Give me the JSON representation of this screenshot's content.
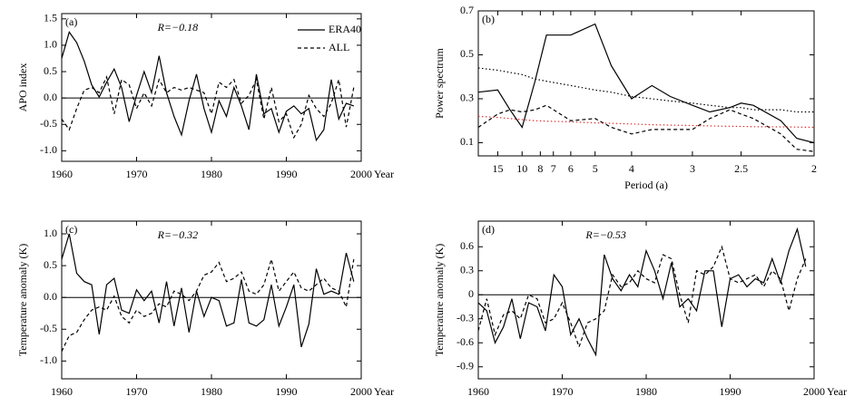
{
  "chart_data": [
    {
      "type": "line",
      "panel_label": "(a)",
      "annotation": "R=−0.18",
      "ylabel": "APO index",
      "xlabel": "Year",
      "x": [
        1960,
        1961,
        1962,
        1963,
        1964,
        1965,
        1966,
        1967,
        1968,
        1969,
        1970,
        1971,
        1972,
        1973,
        1974,
        1975,
        1976,
        1977,
        1978,
        1979,
        1980,
        1981,
        1982,
        1983,
        1984,
        1985,
        1986,
        1987,
        1988,
        1989,
        1990,
        1991,
        1992,
        1993,
        1994,
        1995,
        1996,
        1997,
        1998,
        1999
      ],
      "xlim": [
        1960,
        2000
      ],
      "xticks": [
        1960,
        1970,
        1980,
        1990,
        2000
      ],
      "ylim": [
        -1.2,
        1.6
      ],
      "yticks": [
        {
          "value": -1,
          "label": "-1.0"
        },
        -0.5,
        {
          "value": 0,
          "label": "0.0"
        },
        0.5,
        {
          "value": 1,
          "label": "1.0"
        },
        1.5
      ],
      "zero_line": true,
      "legend": "upper right",
      "series": [
        {
          "name": "ERA40",
          "color": "#000000",
          "dash": "solid",
          "values": [
            0.75,
            1.25,
            1.05,
            0.7,
            0.25,
            0.02,
            0.3,
            0.55,
            0.2,
            -0.45,
            0.05,
            0.5,
            0.1,
            0.8,
            0.1,
            -0.35,
            -0.7,
            -0.05,
            0.45,
            -0.2,
            -0.65,
            -0.05,
            -0.35,
            0.2,
            -0.15,
            -0.6,
            0.45,
            -0.3,
            -0.2,
            -0.65,
            -0.25,
            -0.15,
            -0.3,
            -0.2,
            -0.8,
            -0.6,
            0.35,
            -0.4,
            -0.1,
            -0.15
          ]
        },
        {
          "name": "ALL",
          "color": "#000000",
          "dash": "dashed",
          "values": [
            -0.4,
            -0.6,
            -0.2,
            0.15,
            0.2,
            0.1,
            0.4,
            -0.3,
            0.35,
            0.25,
            -0.2,
            0.1,
            -0.15,
            0.35,
            0.1,
            0.2,
            0.15,
            0.2,
            0.15,
            0.1,
            -0.3,
            0.3,
            0.2,
            0.35,
            -0.1,
            0.05,
            0.35,
            -0.4,
            0.2,
            -0.45,
            -0.3,
            -0.75,
            -0.5,
            0.05,
            -0.2,
            -0.35,
            -0.1,
            0.35,
            -0.55,
            0.2
          ]
        }
      ]
    },
    {
      "type": "line",
      "panel_label": "(b)",
      "ylabel": "Power spectrum",
      "xlabel": "Period (a)",
      "xscale": "reciprocal",
      "x": [
        25,
        15,
        12,
        10,
        8.5,
        7.5,
        6,
        5,
        4.5,
        4,
        3.6,
        3.3,
        3,
        2.8,
        2.6,
        2.5,
        2.4,
        2.2,
        2.1,
        2
      ],
      "xlim": [
        25,
        2
      ],
      "xticks": [
        15,
        10,
        8,
        7,
        6,
        5,
        4,
        3,
        2.5,
        2
      ],
      "ylim": [
        0.04,
        0.7
      ],
      "yticks": [
        0.1,
        0.3,
        0.5,
        0.7
      ],
      "series": [
        {
          "color": "#000000",
          "dash": "solid",
          "values": [
            0.33,
            0.34,
            0.25,
            0.17,
            0.38,
            0.59,
            0.59,
            0.64,
            0.45,
            0.3,
            0.36,
            0.31,
            0.27,
            0.24,
            0.26,
            0.28,
            0.27,
            0.2,
            0.12,
            0.1
          ]
        },
        {
          "color": "#000000",
          "dash": "dashed",
          "values": [
            0.17,
            0.23,
            0.25,
            0.24,
            0.25,
            0.27,
            0.2,
            0.21,
            0.17,
            0.14,
            0.16,
            0.16,
            0.16,
            0.21,
            0.25,
            0.23,
            0.21,
            0.14,
            0.07,
            0.06
          ]
        },
        {
          "color": "#000000",
          "dash": "dotted",
          "values": [
            0.44,
            0.43,
            0.42,
            0.41,
            0.39,
            0.38,
            0.36,
            0.34,
            0.33,
            0.31,
            0.3,
            0.29,
            0.28,
            0.27,
            0.26,
            0.26,
            0.25,
            0.25,
            0.24,
            0.24
          ]
        },
        {
          "color": "#e03030",
          "dash": "dotted",
          "values": [
            0.22,
            0.215,
            0.21,
            0.205,
            0.2,
            0.198,
            0.195,
            0.19,
            0.188,
            0.185,
            0.182,
            0.18,
            0.178,
            0.176,
            0.175,
            0.174,
            0.173,
            0.172,
            0.171,
            0.17
          ]
        }
      ]
    },
    {
      "type": "line",
      "panel_label": "(c)",
      "annotation": "R=−0.32",
      "ylabel": "Temperature anomaly (K)",
      "xlabel": "Year",
      "x": [
        1960,
        1961,
        1962,
        1963,
        1964,
        1965,
        1966,
        1967,
        1968,
        1969,
        1970,
        1971,
        1972,
        1973,
        1974,
        1975,
        1976,
        1977,
        1978,
        1979,
        1980,
        1981,
        1982,
        1983,
        1984,
        1985,
        1986,
        1987,
        1988,
        1989,
        1990,
        1991,
        1992,
        1993,
        1994,
        1995,
        1996,
        1997,
        1998,
        1999
      ],
      "xlim": [
        1960,
        2000
      ],
      "xticks": [
        1960,
        1970,
        1980,
        1990,
        2000
      ],
      "ylim": [
        -1.28,
        1.2
      ],
      "yticks": [
        {
          "value": -1,
          "label": "-1.0"
        },
        -0.5,
        {
          "value": 0,
          "label": "0.0"
        },
        0.5,
        {
          "value": 1,
          "label": "1.0"
        }
      ],
      "zero_line": true,
      "series": [
        {
          "color": "#000000",
          "dash": "solid",
          "values": [
            0.6,
            1.0,
            0.38,
            0.25,
            0.2,
            -0.58,
            0.2,
            0.3,
            -0.2,
            -0.25,
            0.12,
            -0.05,
            0.1,
            -0.4,
            0.25,
            -0.45,
            0.15,
            -0.55,
            0.1,
            -0.3,
            0.0,
            -0.05,
            -0.45,
            -0.4,
            0.28,
            -0.4,
            -0.45,
            -0.35,
            0.2,
            -0.45,
            -0.15,
            0.2,
            -0.78,
            -0.42,
            0.45,
            0.05,
            0.1,
            0.05,
            0.7,
            0.25
          ]
        },
        {
          "color": "#000000",
          "dash": "dashed",
          "values": [
            -0.85,
            -0.6,
            -0.55,
            -0.35,
            -0.2,
            -0.15,
            -0.2,
            0.02,
            -0.3,
            -0.4,
            -0.2,
            -0.3,
            -0.25,
            -0.1,
            -0.15,
            0.1,
            0.05,
            -0.05,
            0.1,
            0.35,
            0.4,
            0.55,
            0.25,
            0.3,
            0.4,
            0.1,
            0.05,
            0.2,
            0.6,
            0.1,
            0.25,
            0.4,
            0.15,
            0.1,
            0.2,
            0.3,
            0.15,
            0.1,
            -0.15,
            0.6
          ]
        }
      ]
    },
    {
      "type": "line",
      "panel_label": "(d)",
      "annotation": "R=−0.53",
      "ylabel": "Temperature anomaly (K)",
      "xlabel": "Year",
      "x": [
        1960,
        1961,
        1962,
        1963,
        1964,
        1965,
        1966,
        1967,
        1968,
        1969,
        1970,
        1971,
        1972,
        1973,
        1974,
        1975,
        1976,
        1977,
        1978,
        1979,
        1980,
        1981,
        1982,
        1983,
        1984,
        1985,
        1986,
        1987,
        1988,
        1989,
        1990,
        1991,
        1992,
        1993,
        1994,
        1995,
        1996,
        1997,
        1998,
        1999
      ],
      "xlim": [
        1960,
        2000
      ],
      "xticks": [
        1960,
        1970,
        1980,
        1990,
        2000
      ],
      "ylim": [
        -1.05,
        0.92
      ],
      "yticks": [
        -0.9,
        -0.6,
        -0.3,
        0,
        0.3,
        0.6
      ],
      "zero_line": true,
      "series": [
        {
          "color": "#000000",
          "dash": "solid",
          "values": [
            -0.1,
            -0.2,
            -0.6,
            -0.4,
            -0.05,
            -0.55,
            -0.1,
            -0.15,
            -0.45,
            0.25,
            0.1,
            -0.5,
            -0.3,
            -0.55,
            -0.75,
            0.5,
            0.2,
            0.05,
            0.25,
            0.1,
            0.55,
            0.3,
            -0.05,
            0.4,
            -0.15,
            -0.05,
            -0.2,
            0.3,
            0.3,
            -0.4,
            0.2,
            0.25,
            0.1,
            0.2,
            0.15,
            0.45,
            0.15,
            0.55,
            0.82,
            0.35
          ]
        },
        {
          "color": "#000000",
          "dash": "dashed",
          "values": [
            -0.45,
            -0.05,
            -0.5,
            -0.25,
            -0.2,
            -0.3,
            0.0,
            -0.05,
            -0.35,
            -0.3,
            -0.1,
            -0.35,
            -0.65,
            -0.35,
            -0.3,
            -0.2,
            0.25,
            0.1,
            0.15,
            0.3,
            0.2,
            0.15,
            0.5,
            0.45,
            0.0,
            -0.35,
            0.3,
            0.25,
            0.35,
            0.6,
            0.2,
            0.15,
            0.2,
            0.25,
            0.1,
            0.3,
            0.2,
            -0.2,
            0.2,
            0.45
          ]
        }
      ]
    }
  ]
}
